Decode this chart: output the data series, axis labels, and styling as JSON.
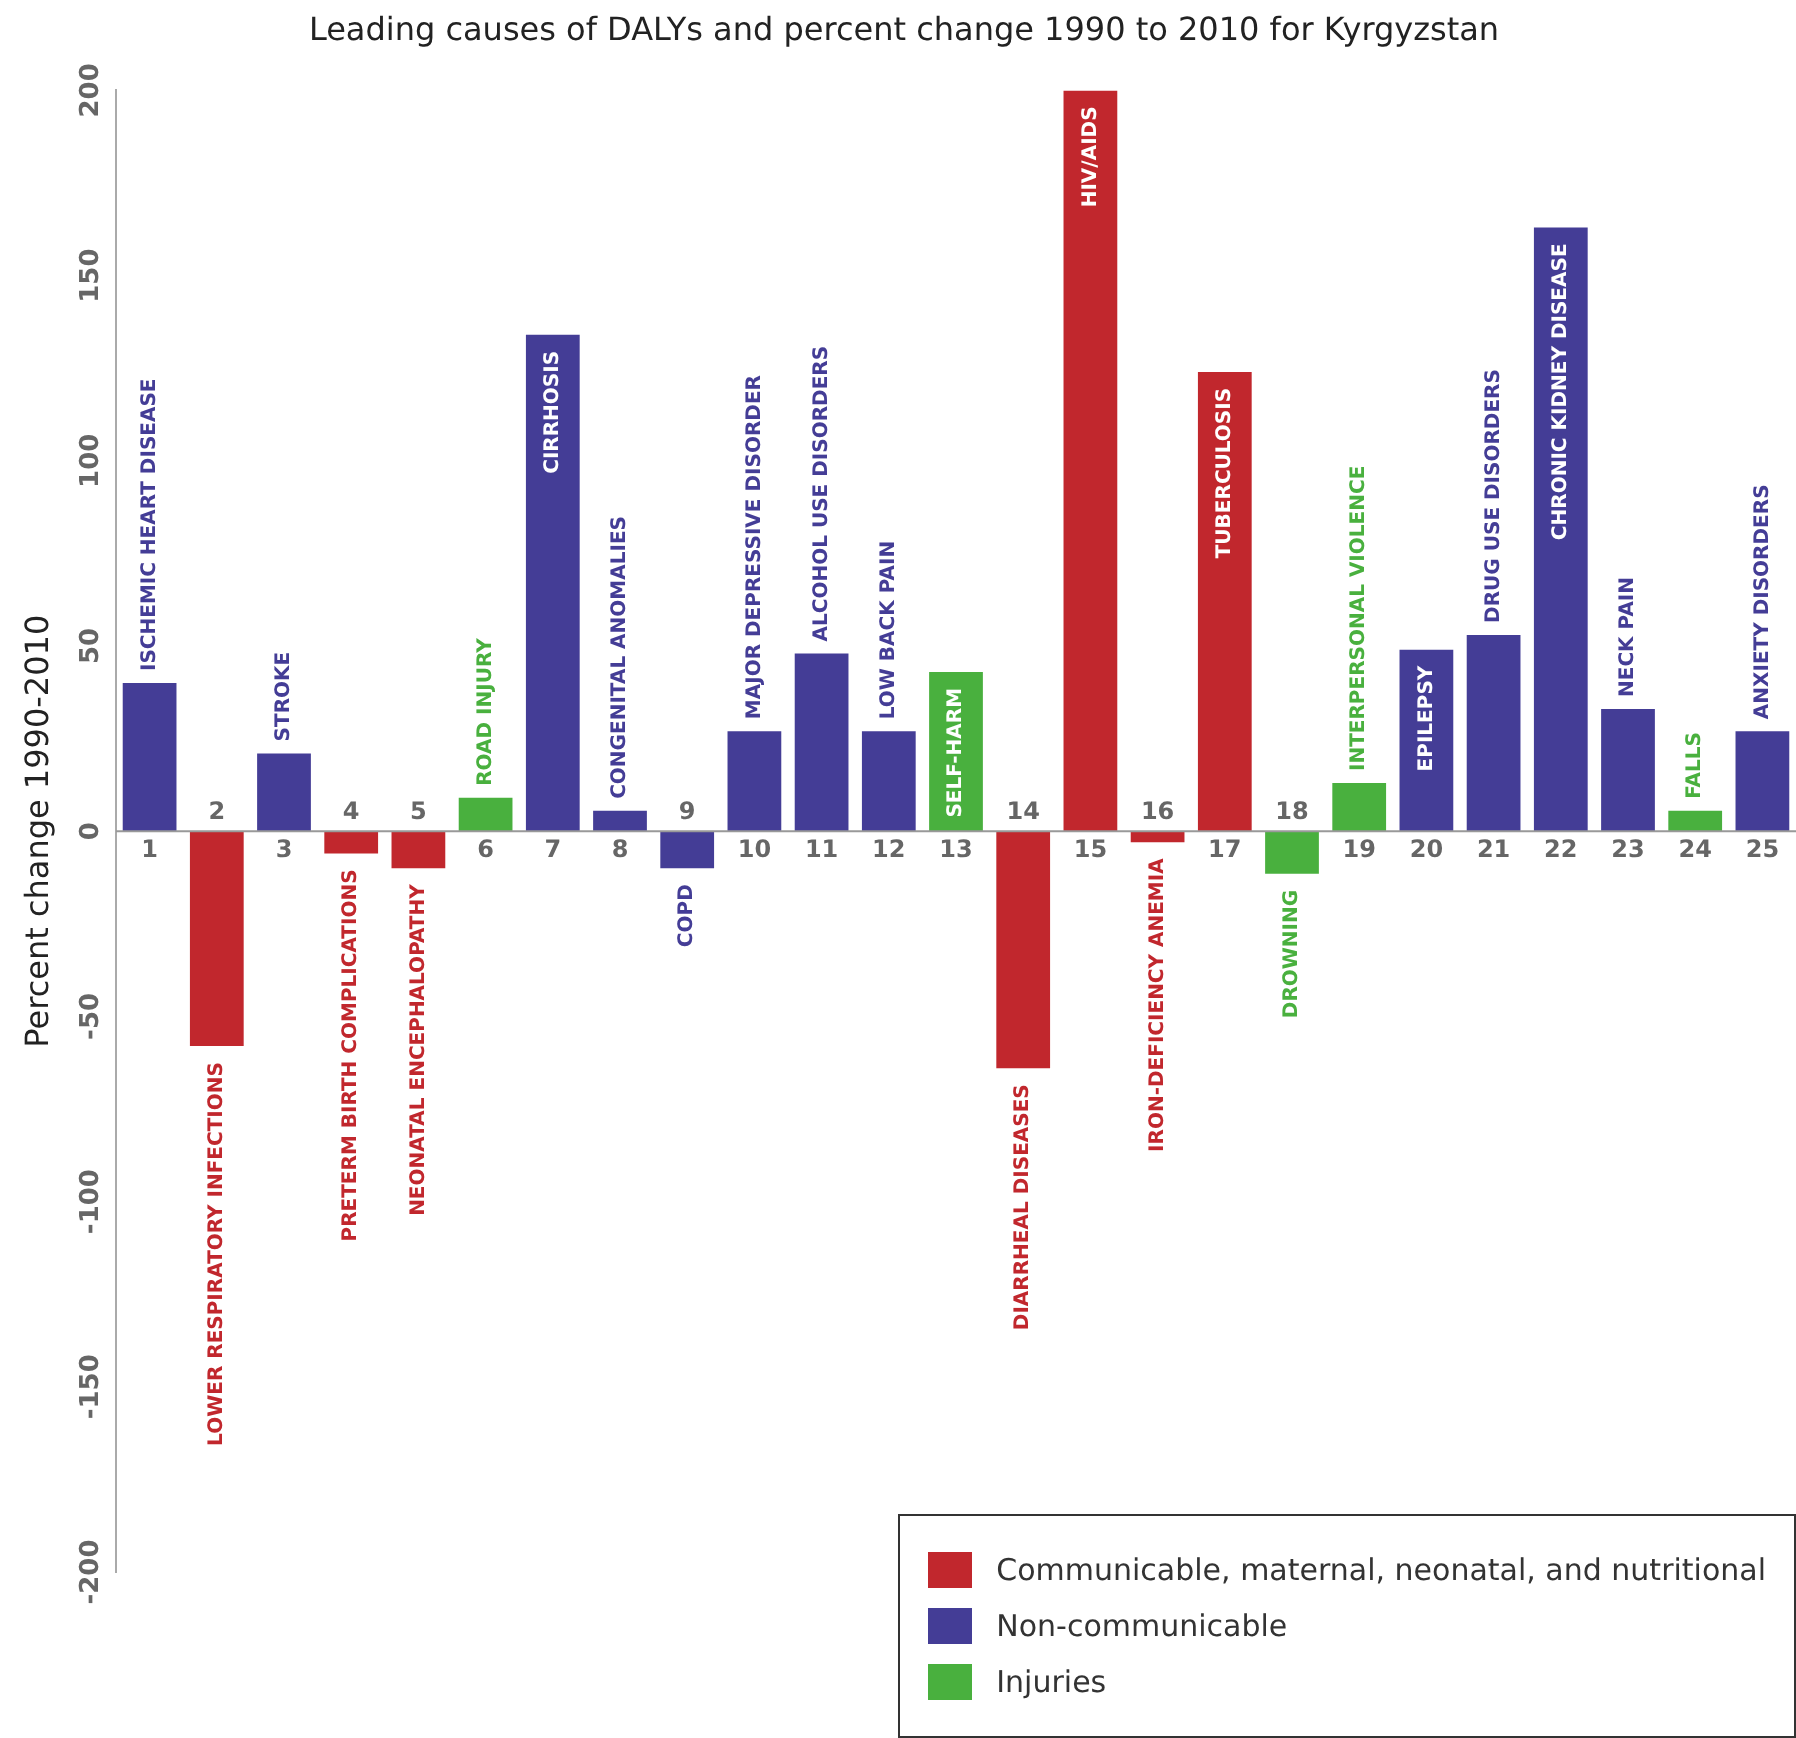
{
  "chart_data": {
    "type": "bar",
    "title": "Leading causes of DALYs and percent change 1990 to 2010 for Kyrgyzstan",
    "ylabel": "Percent change 1990-2010",
    "categories": [
      "1",
      "2",
      "3",
      "4",
      "5",
      "6",
      "7",
      "8",
      "9",
      "10",
      "11",
      "12",
      "13",
      "14",
      "15",
      "16",
      "17",
      "18",
      "19",
      "20",
      "21",
      "22",
      "23",
      "24",
      "25"
    ],
    "series": [
      {
        "name": "Communicable, maternal, neonatal, and nutritional",
        "color": "#c1272d",
        "values": [
          null,
          -58,
          null,
          -6,
          -10,
          null,
          null,
          null,
          null,
          null,
          null,
          null,
          null,
          -64,
          200,
          -3,
          124,
          null,
          null,
          null,
          null,
          null,
          null,
          null,
          null
        ]
      },
      {
        "name": "Non-communicable",
        "color": "#443d96",
        "values": [
          40,
          null,
          21,
          null,
          null,
          null,
          134,
          5.5,
          -10,
          27,
          48,
          27,
          null,
          null,
          null,
          null,
          null,
          null,
          null,
          49,
          53,
          163,
          33,
          null,
          27
        ]
      },
      {
        "name": "Injuries",
        "color": "#49b03e",
        "values": [
          null,
          null,
          null,
          null,
          null,
          9,
          null,
          null,
          null,
          null,
          null,
          null,
          43,
          null,
          null,
          null,
          null,
          -11.5,
          13,
          null,
          null,
          null,
          null,
          5.5,
          null
        ]
      }
    ],
    "annotations": [
      "ISCHEMIC HEART DISEASE",
      "LOWER RESPIRATORY INFECTIONS",
      "STROKE",
      "PRETERM BIRTH COMPLICATIONS",
      "NEONATAL ENCEPHALOPATHY",
      "ROAD INJURY",
      "CIRRHOSIS",
      "CONGENITAL ANOMALIES",
      "COPD",
      "MAJOR DEPRESSIVE DISORDER",
      "ALCOHOL USE DISORDERS",
      "LOW BACK PAIN",
      "SELF-HARM",
      "DIARRHEAL DISEASES",
      "HIV/AIDS",
      "IRON-DEFICIENCY ANEMIA",
      "TUBERCULOSIS",
      "DROWNING",
      "INTERPERSONAL VIOLENCE",
      "EPILEPSY",
      "DRUG USE DISORDERS",
      "CHRONIC KIDNEY DISEASE",
      "NECK PAIN",
      "FALLS",
      "ANXIETY DISORDERS"
    ],
    "stacked": true,
    "ylim": [
      -200,
      200
    ],
    "yticks": [
      -200,
      -150,
      -100,
      -50,
      0,
      50,
      100,
      150,
      200
    ],
    "grid": false,
    "legend": "bottom right"
  }
}
